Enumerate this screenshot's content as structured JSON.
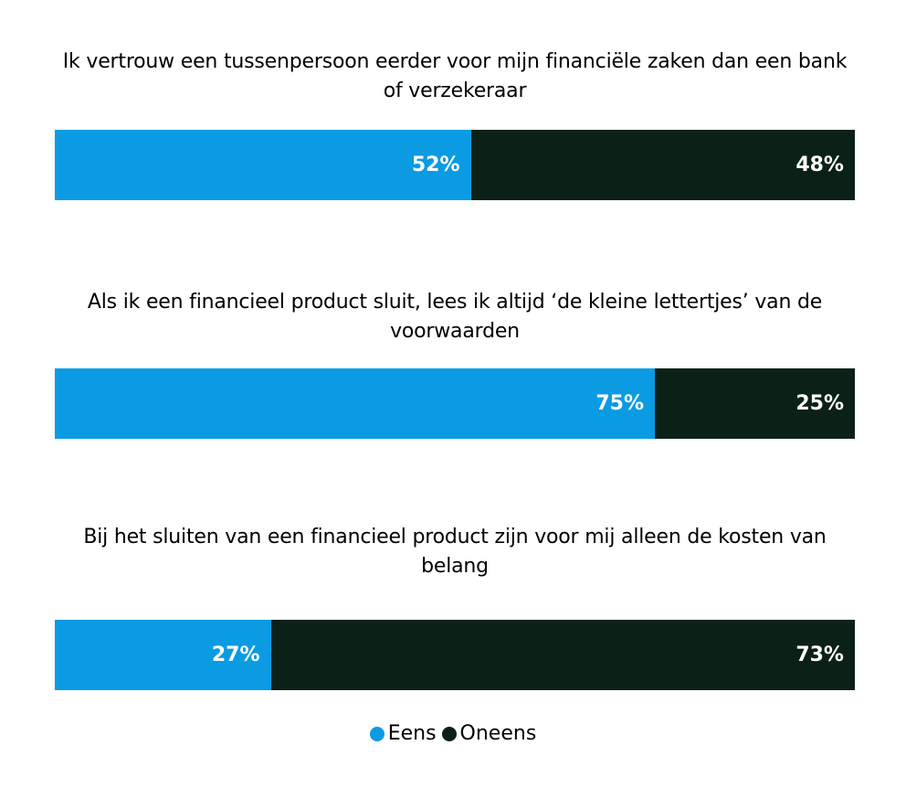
{
  "colors": {
    "eens": "#0a9be3",
    "oneens": "#0b2117"
  },
  "legend": [
    {
      "name": "Eens",
      "color": "#0a9be3"
    },
    {
      "name": "Oneens",
      "color": "#0b2117"
    }
  ],
  "chart_data": {
    "type": "bar",
    "orientation": "horizontal-stacked-100",
    "categories": [
      "Ik vertrouw een tussenpersoon eerder voor mijn financiële zaken dan een bank of verzekeraar",
      "Als ik een financieel product sluit, lees ik altijd ‘de kleine lettertjes’ van de voorwaarden",
      "Bij het sluiten van een financieel product zijn voor mij alleen de kosten van belang"
    ],
    "series": [
      {
        "name": "Eens",
        "values": [
          52,
          75,
          27
        ]
      },
      {
        "name": "Oneens",
        "values": [
          48,
          25,
          73
        ]
      }
    ],
    "labels": [
      [
        "52%",
        "48%"
      ],
      [
        "75%",
        "25%"
      ],
      [
        "27%",
        "73%"
      ]
    ],
    "legend_position": "bottom-center",
    "grid": false
  }
}
